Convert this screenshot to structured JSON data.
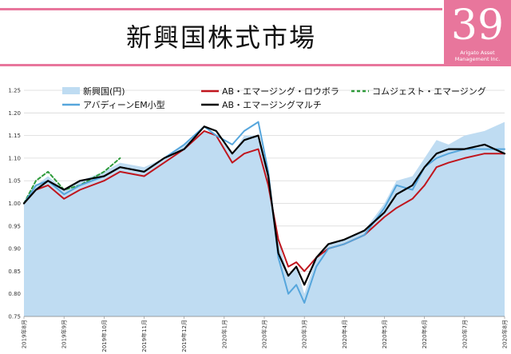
{
  "page": {
    "title": "新興国株式市場"
  },
  "logo": {
    "number": "39",
    "line1": "Arigato Asset",
    "line2": "Management Inc."
  },
  "colors": {
    "area": "#bfdcf2",
    "ab_rowbora": "#c0161e",
    "comgest": "#2d9a3a",
    "aberdeen": "#56a6dc",
    "ab_multi": "#000000",
    "accent": "#e8769c"
  },
  "chart_data": {
    "type": "line",
    "ylim": [
      0.75,
      1.25
    ],
    "yticks": [
      "0.75",
      "0.80",
      "0.85",
      "0.90",
      "0.95",
      "1.00",
      "1.05",
      "1.10",
      "1.15",
      "1.20",
      "1.25"
    ],
    "x_labels": [
      "2019年8月",
      "2019年9月",
      "2019年10月",
      "2019年11月",
      "2019年12月",
      "2020年1月",
      "2020年2月",
      "2020年3月",
      "2020年4月",
      "2020年5月",
      "2020年6月",
      "2020年7月",
      "2020年8月"
    ],
    "grid": true,
    "legend_position": "top",
    "series": [
      {
        "name": "新興国(円)",
        "style": "area",
        "key": "area",
        "points": [
          [
            0,
            1.0
          ],
          [
            0.3,
            1.04
          ],
          [
            0.6,
            1.06
          ],
          [
            1.0,
            1.03
          ],
          [
            1.4,
            1.05
          ],
          [
            2.0,
            1.07
          ],
          [
            2.4,
            1.09
          ],
          [
            3.0,
            1.08
          ],
          [
            3.5,
            1.1
          ],
          [
            4.0,
            1.13
          ],
          [
            4.5,
            1.16
          ],
          [
            4.8,
            1.15
          ],
          [
            5.2,
            1.11
          ],
          [
            5.5,
            1.15
          ],
          [
            5.85,
            1.15
          ],
          [
            6.1,
            1.05
          ],
          [
            6.35,
            0.92
          ],
          [
            6.6,
            0.84
          ],
          [
            6.8,
            0.86
          ],
          [
            7.0,
            0.8
          ],
          [
            7.3,
            0.88
          ],
          [
            7.6,
            0.91
          ],
          [
            8.0,
            0.92
          ],
          [
            8.5,
            0.94
          ],
          [
            9.0,
            1.0
          ],
          [
            9.3,
            1.05
          ],
          [
            9.7,
            1.06
          ],
          [
            10.0,
            1.1
          ],
          [
            10.3,
            1.14
          ],
          [
            10.6,
            1.13
          ],
          [
            11.0,
            1.15
          ],
          [
            11.5,
            1.16
          ],
          [
            12.0,
            1.18
          ]
        ]
      },
      {
        "name": "AB・エマージング・ロウボラ",
        "style": "line",
        "key": "ab_rowbora",
        "points": [
          [
            0,
            1.0
          ],
          [
            0.3,
            1.03
          ],
          [
            0.6,
            1.04
          ],
          [
            1.0,
            1.01
          ],
          [
            1.4,
            1.03
          ],
          [
            2.0,
            1.05
          ],
          [
            2.4,
            1.07
          ],
          [
            3.0,
            1.06
          ],
          [
            3.5,
            1.09
          ],
          [
            4.0,
            1.12
          ],
          [
            4.5,
            1.16
          ],
          [
            4.8,
            1.15
          ],
          [
            5.2,
            1.09
          ],
          [
            5.5,
            1.11
          ],
          [
            5.85,
            1.12
          ],
          [
            6.1,
            1.04
          ],
          [
            6.35,
            0.92
          ],
          [
            6.6,
            0.86
          ],
          [
            6.8,
            0.87
          ],
          [
            7.0,
            0.85
          ],
          [
            7.3,
            0.88
          ],
          [
            7.6,
            0.9
          ],
          [
            8.0,
            0.91
          ],
          [
            8.5,
            0.93
          ],
          [
            9.0,
            0.97
          ],
          [
            9.3,
            0.99
          ],
          [
            9.7,
            1.01
          ],
          [
            10.0,
            1.04
          ],
          [
            10.3,
            1.08
          ],
          [
            10.6,
            1.09
          ],
          [
            11.0,
            1.1
          ],
          [
            11.5,
            1.11
          ],
          [
            12.0,
            1.11
          ]
        ]
      },
      {
        "name": "コムジェスト・エマージング",
        "style": "dashed",
        "key": "comgest",
        "points": [
          [
            0,
            1.0
          ],
          [
            0.3,
            1.05
          ],
          [
            0.6,
            1.07
          ],
          [
            1.0,
            1.03
          ],
          [
            1.4,
            1.04
          ],
          [
            2.0,
            1.07
          ],
          [
            2.4,
            1.1
          ]
        ]
      },
      {
        "name": "アバディーンEM小型",
        "style": "line",
        "key": "aberdeen",
        "points": [
          [
            0,
            1.0
          ],
          [
            0.3,
            1.04
          ],
          [
            0.6,
            1.05
          ],
          [
            1.0,
            1.02
          ],
          [
            1.4,
            1.04
          ],
          [
            2.0,
            1.06
          ],
          [
            2.4,
            1.08
          ],
          [
            3.0,
            1.07
          ],
          [
            3.5,
            1.1
          ],
          [
            4.0,
            1.13
          ],
          [
            4.5,
            1.17
          ],
          [
            4.8,
            1.15
          ],
          [
            5.2,
            1.13
          ],
          [
            5.5,
            1.16
          ],
          [
            5.85,
            1.18
          ],
          [
            6.1,
            1.07
          ],
          [
            6.35,
            0.88
          ],
          [
            6.6,
            0.8
          ],
          [
            6.8,
            0.82
          ],
          [
            7.0,
            0.78
          ],
          [
            7.3,
            0.86
          ],
          [
            7.6,
            0.9
          ],
          [
            8.0,
            0.91
          ],
          [
            8.5,
            0.93
          ],
          [
            9.0,
            0.99
          ],
          [
            9.3,
            1.04
          ],
          [
            9.7,
            1.03
          ],
          [
            10.0,
            1.08
          ],
          [
            10.3,
            1.1
          ],
          [
            10.6,
            1.11
          ],
          [
            11.0,
            1.12
          ],
          [
            11.5,
            1.12
          ],
          [
            12.0,
            1.12
          ]
        ]
      },
      {
        "name": "AB・エマージングマルチ",
        "style": "line",
        "key": "ab_multi",
        "points": [
          [
            0,
            1.0
          ],
          [
            0.3,
            1.03
          ],
          [
            0.6,
            1.05
          ],
          [
            1.0,
            1.03
          ],
          [
            1.4,
            1.05
          ],
          [
            2.0,
            1.06
          ],
          [
            2.4,
            1.08
          ],
          [
            3.0,
            1.07
          ],
          [
            3.5,
            1.1
          ],
          [
            4.0,
            1.12
          ],
          [
            4.5,
            1.17
          ],
          [
            4.8,
            1.16
          ],
          [
            5.2,
            1.11
          ],
          [
            5.5,
            1.14
          ],
          [
            5.85,
            1.15
          ],
          [
            6.1,
            1.06
          ],
          [
            6.35,
            0.89
          ],
          [
            6.6,
            0.84
          ],
          [
            6.8,
            0.86
          ],
          [
            7.0,
            0.82
          ],
          [
            7.3,
            0.88
          ],
          [
            7.6,
            0.91
          ],
          [
            8.0,
            0.92
          ],
          [
            8.5,
            0.94
          ],
          [
            9.0,
            0.98
          ],
          [
            9.3,
            1.02
          ],
          [
            9.7,
            1.04
          ],
          [
            10.0,
            1.08
          ],
          [
            10.3,
            1.11
          ],
          [
            10.6,
            1.12
          ],
          [
            11.0,
            1.12
          ],
          [
            11.5,
            1.13
          ],
          [
            12.0,
            1.11
          ]
        ]
      }
    ]
  }
}
